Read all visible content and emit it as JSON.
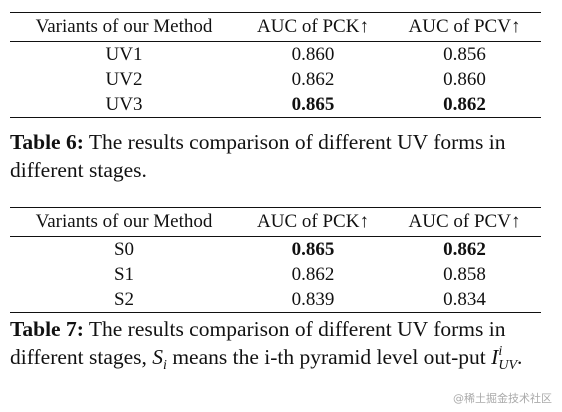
{
  "table6": {
    "header": [
      "Variants of our Method",
      "AUC of PCK↑",
      "AUC of PCV↑"
    ],
    "rows": [
      [
        "UV1",
        "0.860",
        "0.856"
      ],
      [
        "UV2",
        "0.862",
        "0.860"
      ],
      [
        "UV3",
        "0.865",
        "0.862"
      ]
    ],
    "caption_label": "Table 6:",
    "caption_text": "The results comparison of different UV forms in different stages."
  },
  "table7": {
    "header": [
      "Variants of our Method",
      "AUC of PCK↑",
      "AUC of PCV↑"
    ],
    "rows": [
      [
        "S0",
        "0.865",
        "0.862"
      ],
      [
        "S1",
        "0.862",
        "0.858"
      ],
      [
        "S2",
        "0.839",
        "0.834"
      ]
    ],
    "caption_label": "Table 7:",
    "caption_parts": [
      "The results comparison of different UV forms in different stages,",
      "S",
      "i",
      "means the i-th pyramid level out-put",
      "I",
      "i",
      "UV",
      "."
    ]
  },
  "watermark": "@稀土掘金技术社区"
}
